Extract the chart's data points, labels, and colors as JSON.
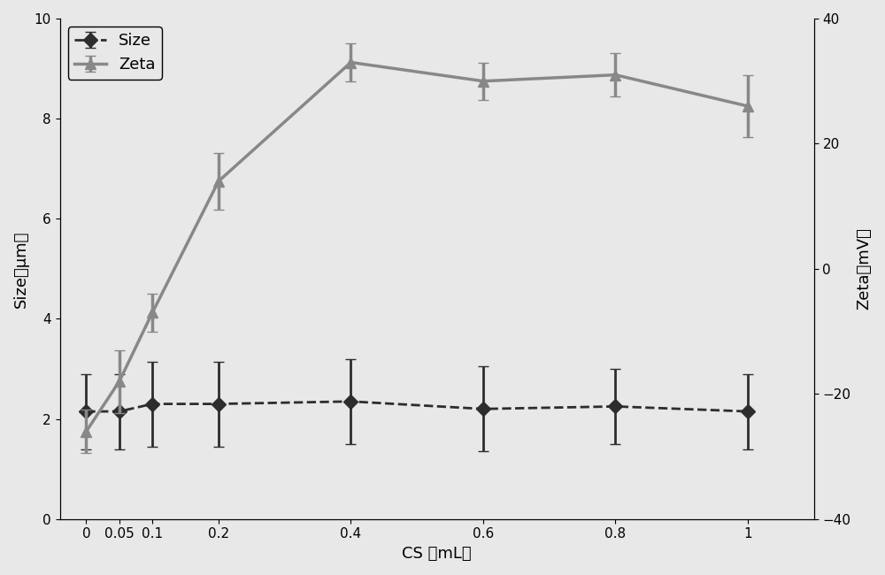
{
  "x": [
    0,
    0.05,
    0.1,
    0.2,
    0.4,
    0.6,
    0.8,
    1.0
  ],
  "size_y": [
    2.15,
    2.15,
    2.3,
    2.3,
    2.35,
    2.2,
    2.25,
    2.15
  ],
  "size_yerr": [
    0.75,
    0.75,
    0.85,
    0.85,
    0.85,
    0.85,
    0.75,
    0.75
  ],
  "zeta_y_mV": [
    -26,
    -18,
    -7,
    14,
    33,
    30,
    31,
    26
  ],
  "zeta_yerr_mV": [
    3.5,
    5.0,
    3.0,
    4.5,
    3.0,
    3.0,
    3.5,
    5.0
  ],
  "size_color": "#2d2d2d",
  "zeta_color": "#888888",
  "size_label": "Size",
  "zeta_label": "Zeta",
  "xlabel": "CS （mL）",
  "ylabel_left": "Size（μm）",
  "ylabel_right": "Zeta（mV）",
  "ylim_left": [
    0,
    10
  ],
  "ylim_right": [
    -40,
    40
  ],
  "yticks_left": [
    0,
    2,
    4,
    6,
    8,
    10
  ],
  "yticks_right": [
    -40,
    -20,
    0,
    20,
    40
  ],
  "xticks": [
    0,
    0.05,
    0.1,
    0.2,
    0.4,
    0.6,
    0.8,
    1
  ],
  "xtick_labels": [
    "0",
    "0.05",
    "0.1",
    "0.2",
    "0.4",
    "0.6",
    "0.8",
    "1"
  ],
  "background_color": "#e8e8e8",
  "linewidth_size": 2.0,
  "linewidth_zeta": 2.5,
  "markersize": 8,
  "capsize": 4,
  "legend_fontsize": 13,
  "axis_fontsize": 13,
  "tick_fontsize": 11
}
